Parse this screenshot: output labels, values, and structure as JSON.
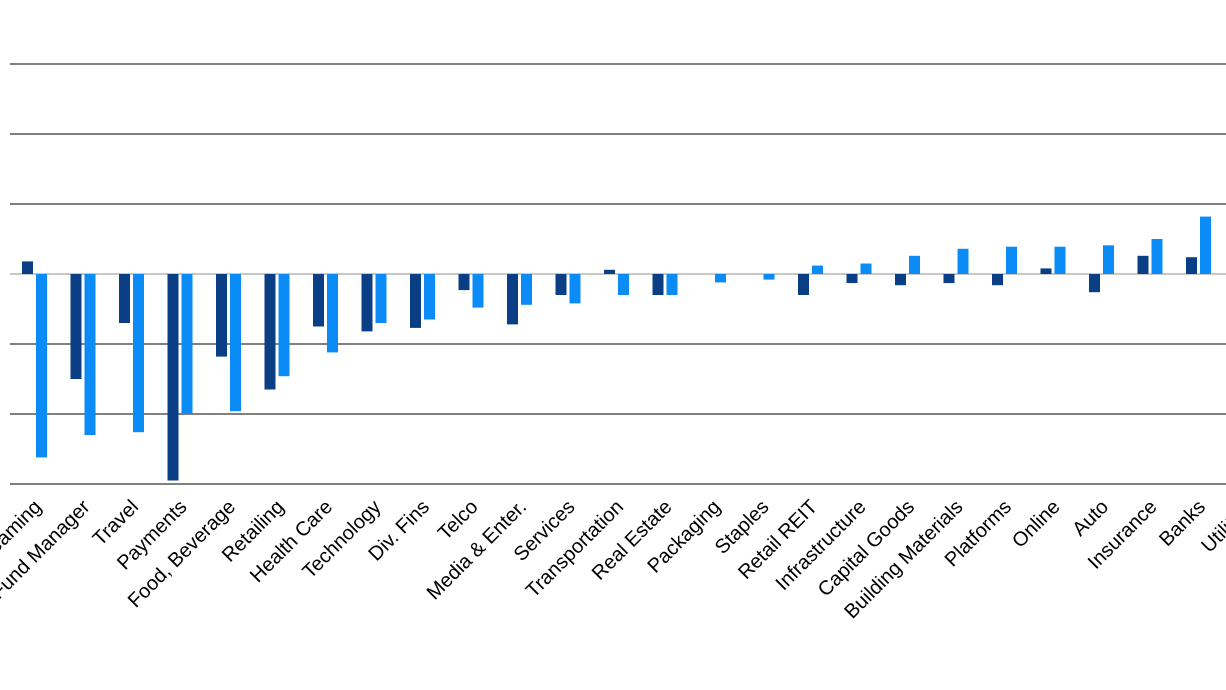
{
  "colors": {
    "series_dark": "#0a3f86",
    "series_light": "#0a8bf5",
    "gridline": "#808080",
    "baseline": "#c8c8c8"
  },
  "chart_data": {
    "type": "bar",
    "categories": [
      "Gaming",
      "Fund Manager",
      "Travel",
      "Payments",
      "Food, Beverage",
      "Retailing",
      "Health Care",
      "Technology",
      "Div. Fins",
      "Telco",
      "Media & Enter.",
      "Services",
      "Transportation",
      "Real Estate",
      "Packaging",
      "Staples",
      "Retail REIT",
      "Infrastructure",
      "Capital Goods",
      "Building Materials",
      "Platforms",
      "Online",
      "Auto",
      "Insurance",
      "Banks",
      "Utilities"
    ],
    "series": [
      {
        "color": "#0a3f86",
        "values": [
          0.18,
          -1.5,
          -0.7,
          -2.95,
          -1.18,
          -1.65,
          -0.75,
          -0.82,
          -0.77,
          -0.23,
          -0.72,
          -0.3,
          0.06,
          -0.3,
          0,
          0,
          -0.3,
          -0.13,
          -0.16,
          -0.13,
          -0.16,
          0.08,
          -0.26,
          0.26,
          0.24,
          null
        ]
      },
      {
        "color": "#0a8bf5",
        "values": [
          -2.62,
          -2.3,
          -2.26,
          -2.0,
          -1.96,
          -1.46,
          -1.12,
          -0.7,
          -0.65,
          -0.48,
          -0.44,
          -0.42,
          -0.3,
          -0.3,
          -0.12,
          -0.08,
          0.12,
          0.15,
          0.26,
          0.36,
          0.39,
          0.39,
          0.41,
          0.5,
          0.82,
          null
        ]
      }
    ],
    "ylim": [
      -3,
      3
    ],
    "y_gridlines": [
      -3,
      -2,
      -1,
      1,
      2,
      3
    ],
    "grid": true,
    "legend": "none"
  }
}
